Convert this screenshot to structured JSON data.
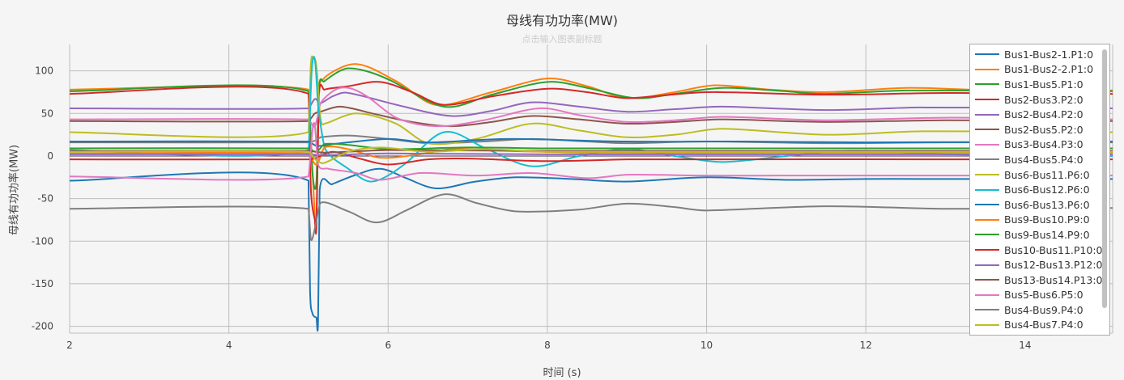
{
  "chart_data": {
    "type": "line",
    "title": "母线有功功率(MW)",
    "subtitle": "点击输入图表副标题",
    "xlabel": "时间 (s)",
    "ylabel": "母线有功功率(MW)",
    "xlim": [
      2,
      15.1
    ],
    "ylim": [
      -208,
      131
    ],
    "xticks": [
      2,
      4,
      6,
      8,
      10,
      12,
      14
    ],
    "yticks": [
      -200,
      -150,
      -100,
      -50,
      0,
      50,
      100
    ],
    "grid": true,
    "legend_position": "right",
    "series": [
      {
        "name": "Bus1-Bus2-1.P1:0",
        "color": "#1f77b4",
        "points": [
          [
            2,
            -29
          ],
          [
            5,
            -29
          ],
          [
            5.02,
            -160
          ],
          [
            5.05,
            -185
          ],
          [
            5.1,
            -190
          ],
          [
            5.12,
            -195
          ],
          [
            5.14,
            -40
          ],
          [
            5.3,
            -33
          ],
          [
            5.6,
            -22
          ],
          [
            5.9,
            -15
          ],
          [
            6.2,
            -25
          ],
          [
            6.6,
            -38
          ],
          [
            7.1,
            -30
          ],
          [
            7.6,
            -25
          ],
          [
            8.3,
            -27
          ],
          [
            9,
            -30
          ],
          [
            10,
            -25
          ],
          [
            11,
            -28
          ],
          [
            12,
            -27
          ],
          [
            13,
            -27
          ],
          [
            15.1,
            -27
          ]
        ]
      },
      {
        "name": "Bus1-Bus2-2.P1:0",
        "color": "#ff7f0e",
        "points": [
          [
            2,
            78
          ],
          [
            5,
            78
          ],
          [
            5.03,
            20
          ],
          [
            5.08,
            -70
          ],
          [
            5.1,
            -80
          ],
          [
            5.13,
            70
          ],
          [
            5.2,
            92
          ],
          [
            5.6,
            108
          ],
          [
            6.1,
            88
          ],
          [
            6.6,
            60
          ],
          [
            7.3,
            75
          ],
          [
            8,
            91
          ],
          [
            8.5,
            82
          ],
          [
            9,
            68
          ],
          [
            9.6,
            75
          ],
          [
            10.1,
            83
          ],
          [
            10.8,
            78
          ],
          [
            11.5,
            75
          ],
          [
            12.5,
            80
          ],
          [
            13.3,
            78
          ],
          [
            15.1,
            77
          ]
        ]
      },
      {
        "name": "Bus1-Bus5.P1:0",
        "color": "#2ca02c",
        "points": [
          [
            2,
            76
          ],
          [
            5,
            76
          ],
          [
            5.05,
            -20
          ],
          [
            5.1,
            -30
          ],
          [
            5.13,
            80
          ],
          [
            5.2,
            88
          ],
          [
            5.5,
            103
          ],
          [
            6,
            90
          ],
          [
            6.7,
            58
          ],
          [
            7.3,
            72
          ],
          [
            8,
            87
          ],
          [
            8.5,
            80
          ],
          [
            9.1,
            68
          ],
          [
            9.6,
            73
          ],
          [
            10.2,
            80
          ],
          [
            11,
            76
          ],
          [
            11.5,
            73
          ],
          [
            12.5,
            77
          ],
          [
            15.1,
            76
          ]
        ]
      },
      {
        "name": "Bus2-Bus3.P2:0",
        "color": "#d62728",
        "points": [
          [
            2,
            73
          ],
          [
            5,
            73
          ],
          [
            5.03,
            -40
          ],
          [
            5.08,
            -75
          ],
          [
            5.1,
            -80
          ],
          [
            5.13,
            70
          ],
          [
            5.2,
            78
          ],
          [
            5.5,
            82
          ],
          [
            5.9,
            87
          ],
          [
            6.3,
            75
          ],
          [
            6.7,
            60
          ],
          [
            7.3,
            70
          ],
          [
            8,
            79
          ],
          [
            8.5,
            75
          ],
          [
            9,
            68
          ],
          [
            10,
            75
          ],
          [
            11.5,
            72
          ],
          [
            13,
            74
          ],
          [
            15.1,
            73
          ]
        ]
      },
      {
        "name": "Bus2-Bus4.P2:0",
        "color": "#9467bd",
        "points": [
          [
            2,
            56
          ],
          [
            5,
            56
          ],
          [
            5.08,
            67
          ],
          [
            5.15,
            62
          ],
          [
            5.3,
            70
          ],
          [
            5.5,
            74
          ],
          [
            6.2,
            58
          ],
          [
            6.8,
            47
          ],
          [
            7.3,
            53
          ],
          [
            7.8,
            63
          ],
          [
            8.4,
            58
          ],
          [
            9,
            52
          ],
          [
            9.6,
            55
          ],
          [
            10.2,
            58
          ],
          [
            11.5,
            54
          ],
          [
            12.7,
            57
          ],
          [
            15.1,
            56
          ]
        ]
      },
      {
        "name": "Bus2-Bus5.P2:0",
        "color": "#8c564b",
        "points": [
          [
            2,
            41
          ],
          [
            5,
            41
          ],
          [
            5.08,
            50
          ],
          [
            5.15,
            52
          ],
          [
            5.4,
            58
          ],
          [
            5.8,
            50
          ],
          [
            6.3,
            40
          ],
          [
            6.8,
            35
          ],
          [
            7.3,
            40
          ],
          [
            7.8,
            47
          ],
          [
            8.4,
            43
          ],
          [
            9,
            38
          ],
          [
            9.6,
            40
          ],
          [
            10.2,
            43
          ],
          [
            11.5,
            40
          ],
          [
            13,
            42
          ],
          [
            15.1,
            41
          ]
        ]
      },
      {
        "name": "Bus3-Bus4.P3:0",
        "color": "#e377c2",
        "points": [
          [
            2,
            43
          ],
          [
            5,
            43
          ],
          [
            5.08,
            35
          ],
          [
            5.15,
            62
          ],
          [
            5.4,
            80
          ],
          [
            5.7,
            72
          ],
          [
            6.1,
            45
          ],
          [
            6.6,
            35
          ],
          [
            7.2,
            42
          ],
          [
            7.9,
            56
          ],
          [
            8.4,
            48
          ],
          [
            9,
            40
          ],
          [
            9.6,
            42
          ],
          [
            10.2,
            46
          ],
          [
            11.5,
            42
          ],
          [
            13,
            45
          ],
          [
            15.1,
            43
          ]
        ]
      },
      {
        "name": "Bus4-Bus5.P4:0",
        "color": "#7f7f7f",
        "points": [
          [
            2,
            16
          ],
          [
            5,
            16
          ],
          [
            5.08,
            18
          ],
          [
            5.15,
            22
          ],
          [
            5.5,
            24
          ],
          [
            6,
            20
          ],
          [
            6.5,
            15
          ],
          [
            7.2,
            17
          ],
          [
            7.8,
            20
          ],
          [
            8.5,
            17
          ],
          [
            9,
            15
          ],
          [
            10,
            17
          ],
          [
            11.5,
            15
          ],
          [
            13,
            16
          ],
          [
            15.1,
            16
          ]
        ]
      },
      {
        "name": "Bus6-Bus11.P6:0",
        "color": "#bcbd22",
        "points": [
          [
            2,
            28
          ],
          [
            5,
            28
          ],
          [
            5.03,
            108
          ],
          [
            5.06,
            115
          ],
          [
            5.1,
            105
          ],
          [
            5.15,
            45
          ],
          [
            5.2,
            38
          ],
          [
            5.6,
            50
          ],
          [
            6.1,
            38
          ],
          [
            6.5,
            15
          ],
          [
            7.1,
            20
          ],
          [
            7.8,
            38
          ],
          [
            8.4,
            30
          ],
          [
            9,
            22
          ],
          [
            9.6,
            25
          ],
          [
            10.2,
            32
          ],
          [
            11.5,
            25
          ],
          [
            12.7,
            29
          ],
          [
            15.1,
            28
          ]
        ]
      },
      {
        "name": "Bus6-Bus12.P6:0",
        "color": "#17becf",
        "points": [
          [
            2,
            7
          ],
          [
            5,
            7
          ],
          [
            5.04,
            100
          ],
          [
            5.08,
            113
          ],
          [
            5.12,
            60
          ],
          [
            5.2,
            10
          ],
          [
            5.5,
            -15
          ],
          [
            5.8,
            -30
          ],
          [
            6.2,
            -10
          ],
          [
            6.7,
            28
          ],
          [
            7.2,
            10
          ],
          [
            7.8,
            -12
          ],
          [
            8.4,
            0
          ],
          [
            9,
            8
          ],
          [
            9.6,
            0
          ],
          [
            10.2,
            -7
          ],
          [
            11,
            0
          ],
          [
            11.8,
            6
          ],
          [
            13,
            2
          ],
          [
            15.1,
            0
          ]
        ]
      },
      {
        "name": "Bus6-Bus13.P6:0",
        "color": "#1f77b4",
        "points": [
          [
            2,
            17
          ],
          [
            5,
            17
          ],
          [
            5.1,
            12
          ],
          [
            5.3,
            14
          ],
          [
            6,
            20
          ],
          [
            6.5,
            16
          ],
          [
            7.5,
            20
          ],
          [
            9,
            17
          ],
          [
            10.5,
            17
          ],
          [
            12,
            16
          ],
          [
            15.1,
            17
          ]
        ]
      },
      {
        "name": "Bus9-Bus10.P9:0",
        "color": "#ff7f0e",
        "points": [
          [
            2,
            3
          ],
          [
            5,
            3
          ],
          [
            5.1,
            -10
          ],
          [
            5.2,
            10
          ],
          [
            5.5,
            8
          ],
          [
            5.9,
            -2
          ],
          [
            6.4,
            2
          ],
          [
            6.8,
            8
          ],
          [
            7.5,
            6
          ],
          [
            8.5,
            4
          ],
          [
            10,
            4
          ],
          [
            15.1,
            4
          ]
        ]
      },
      {
        "name": "Bus9-Bus14.P9:0",
        "color": "#2ca02c",
        "points": [
          [
            2,
            9
          ],
          [
            5,
            9
          ],
          [
            5.1,
            5
          ],
          [
            5.2,
            14
          ],
          [
            5.5,
            13
          ],
          [
            6,
            8
          ],
          [
            7,
            10
          ],
          [
            8,
            9
          ],
          [
            15.1,
            9
          ]
        ]
      },
      {
        "name": "Bus10-Bus11.P10:0",
        "color": "#d62728",
        "points": [
          [
            2,
            -4
          ],
          [
            5,
            -4
          ],
          [
            5.1,
            -2
          ],
          [
            5.3,
            5
          ],
          [
            5.6,
            -2
          ],
          [
            6,
            -10
          ],
          [
            6.5,
            -4
          ],
          [
            7,
            -3
          ],
          [
            8,
            -6
          ],
          [
            9,
            -4
          ],
          [
            15.1,
            -4
          ]
        ]
      },
      {
        "name": "Bus12-Bus13.P12:0",
        "color": "#9467bd",
        "points": [
          [
            2,
            2
          ],
          [
            5,
            2
          ],
          [
            5.2,
            1
          ],
          [
            6,
            3
          ],
          [
            8,
            2
          ],
          [
            15.1,
            2
          ]
        ]
      },
      {
        "name": "Bus13-Bus14.P13:0",
        "color": "#8c564b",
        "points": [
          [
            2,
            6
          ],
          [
            5,
            6
          ],
          [
            5.2,
            4
          ],
          [
            6,
            7
          ],
          [
            8,
            6
          ],
          [
            15.1,
            6
          ]
        ]
      },
      {
        "name": "Bus5-Bus6.P5:0",
        "color": "#e377c2",
        "points": [
          [
            2,
            -24
          ],
          [
            5,
            -24
          ],
          [
            5.05,
            30
          ],
          [
            5.08,
            35
          ],
          [
            5.12,
            -10
          ],
          [
            5.25,
            -15
          ],
          [
            5.6,
            -20
          ],
          [
            5.9,
            -28
          ],
          [
            6.4,
            -20
          ],
          [
            7.1,
            -23
          ],
          [
            7.8,
            -20
          ],
          [
            8.5,
            -26
          ],
          [
            9,
            -22
          ],
          [
            10,
            -23
          ],
          [
            11,
            -23
          ],
          [
            15.1,
            -23
          ]
        ]
      },
      {
        "name": "Bus4-Bus9.P4:0",
        "color": "#7f7f7f",
        "points": [
          [
            2,
            -62
          ],
          [
            5,
            -62
          ],
          [
            5.03,
            -98
          ],
          [
            5.08,
            -85
          ],
          [
            5.15,
            -55
          ],
          [
            5.5,
            -65
          ],
          [
            5.85,
            -78
          ],
          [
            6.2,
            -65
          ],
          [
            6.7,
            -45
          ],
          [
            7.1,
            -55
          ],
          [
            7.6,
            -65
          ],
          [
            8.4,
            -63
          ],
          [
            9,
            -56
          ],
          [
            9.6,
            -60
          ],
          [
            10,
            -64
          ],
          [
            11.5,
            -59
          ],
          [
            13,
            -62
          ],
          [
            15.1,
            -61
          ]
        ]
      },
      {
        "name": "Bus4-Bus7.P4:0",
        "color": "#bcbd22",
        "points": [
          [
            2,
            5
          ],
          [
            5,
            5
          ],
          [
            5.1,
            -5
          ],
          [
            5.2,
            -8
          ],
          [
            5.5,
            5
          ],
          [
            5.9,
            10
          ],
          [
            6.5,
            5
          ],
          [
            7.2,
            8
          ],
          [
            8,
            5
          ],
          [
            15.1,
            5
          ]
        ]
      }
    ]
  }
}
